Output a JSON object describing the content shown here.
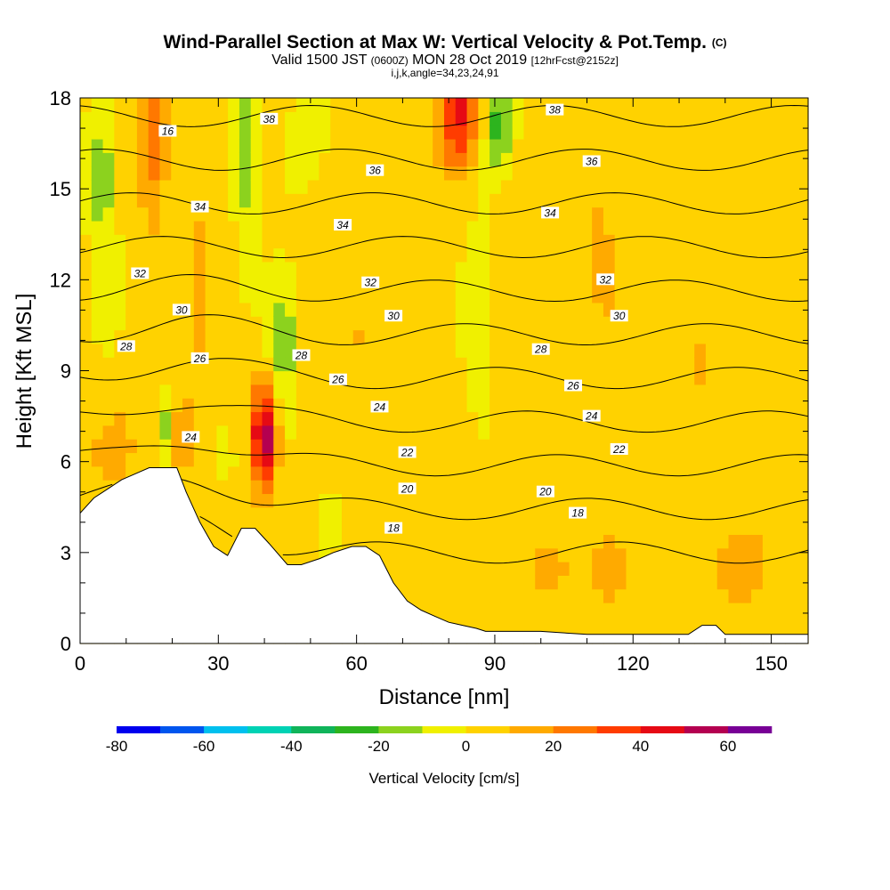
{
  "title": {
    "main": "Wind-Parallel Section at Max W: Vertical Velocity & Pot.Temp.",
    "unit": "(C)",
    "valid_prefix": "Valid 1500 JST",
    "valid_utc": "(0600Z)",
    "valid_date": "MON 28 Oct 2019",
    "forecast": "[12hrFcst@2152z]",
    "indices": "i,j,k,angle=34,23,24,91"
  },
  "colors": {
    "contour_line": "#000000",
    "terrain_fill": "#ffffff",
    "colorbar": [
      "#0000ee",
      "#0055ee",
      "#00c0ee",
      "#00d2b4",
      "#10b45a",
      "#2db41e",
      "#8cd21e",
      "#f0f000",
      "#ffd200",
      "#ffaa00",
      "#ff7800",
      "#ff3c00",
      "#e60a14",
      "#b40050",
      "#780096"
    ]
  },
  "chart_data": {
    "type": "heatmap",
    "xlabel": "Distance [nm]",
    "ylabel": "Height [Kft MSL]",
    "xlim": [
      0,
      158
    ],
    "ylim": [
      0,
      18
    ],
    "x_ticks": [
      0,
      30,
      60,
      90,
      120,
      150
    ],
    "y_ticks": [
      0,
      3,
      6,
      9,
      12,
      15,
      18
    ],
    "colorbar": {
      "label": "Vertical Velocity [cm/s]",
      "ticks": [
        -80,
        -60,
        -40,
        -20,
        0,
        20,
        40,
        60
      ],
      "bounds": [
        -80,
        70
      ],
      "step": 10
    },
    "terrain": {
      "x": [
        0,
        3,
        6,
        9,
        12,
        15,
        18,
        21,
        23,
        26,
        29,
        32,
        35,
        38,
        41,
        45,
        48,
        52,
        55,
        59,
        62,
        65,
        68,
        71,
        74,
        77,
        80,
        83,
        86,
        88,
        90,
        95,
        100,
        110,
        120,
        130,
        132,
        135,
        138,
        140,
        145,
        150,
        155,
        158
      ],
      "height": [
        4.3,
        4.8,
        5.1,
        5.4,
        5.6,
        5.8,
        5.8,
        5.8,
        5.0,
        4.0,
        3.2,
        2.9,
        3.8,
        3.8,
        3.3,
        2.6,
        2.6,
        2.8,
        3.0,
        3.2,
        3.2,
        2.9,
        2.0,
        1.4,
        1.1,
        0.9,
        0.7,
        0.6,
        0.5,
        0.4,
        0.4,
        0.4,
        0.4,
        0.3,
        0.3,
        0.3,
        0.3,
        0.6,
        0.6,
        0.3,
        0.3,
        0.3,
        0.3,
        0.3
      ]
    },
    "velocity_features": [
      {
        "x": 40,
        "y": 6.8,
        "sx": 2.6,
        "sy": 1.8,
        "w": 55
      },
      {
        "x": 82,
        "y": 17.4,
        "sx": 4.5,
        "sy": 1.6,
        "w": 40
      },
      {
        "x": 16,
        "y": 16.5,
        "sx": 3.0,
        "sy": 2.8,
        "w": 22
      },
      {
        "x": 26,
        "y": 11.5,
        "sx": 3.0,
        "sy": 3.0,
        "w": 12
      },
      {
        "x": 6,
        "y": 6.4,
        "sx": 5.0,
        "sy": 1.4,
        "w": 14
      },
      {
        "x": 22,
        "y": 6.8,
        "sx": 2.5,
        "sy": 1.5,
        "w": 12
      },
      {
        "x": 110,
        "y": 2.5,
        "sx": 20,
        "sy": 1.6,
        "w": 8
      },
      {
        "x": 145,
        "y": 2.5,
        "sx": 10,
        "sy": 1.6,
        "w": 10
      },
      {
        "x": 113,
        "y": 13.0,
        "sx": 4.0,
        "sy": 3.0,
        "w": 9
      },
      {
        "x": 135,
        "y": 9.5,
        "sx": 3.0,
        "sy": 1.6,
        "w": 9
      },
      {
        "x": 60,
        "y": 9.2,
        "sx": 12,
        "sy": 3.0,
        "w": 6
      },
      {
        "x": 5,
        "y": 15.0,
        "sx": 3.0,
        "sy": 5.0,
        "w": -15
      },
      {
        "x": 36,
        "y": 16.5,
        "sx": 2.2,
        "sy": 3.5,
        "w": -20
      },
      {
        "x": 44,
        "y": 10.0,
        "sx": 3.0,
        "sy": 2.2,
        "w": -24
      },
      {
        "x": 50,
        "y": 17.0,
        "sx": 3.5,
        "sy": 2.0,
        "w": -12
      },
      {
        "x": 54,
        "y": 4.0,
        "sx": 2.0,
        "sy": 1.0,
        "w": -12
      },
      {
        "x": 86,
        "y": 11.0,
        "sx": 3.0,
        "sy": 2.4,
        "w": -14
      },
      {
        "x": 91,
        "y": 17.2,
        "sx": 3.0,
        "sy": 1.6,
        "w": -30
      },
      {
        "x": 19,
        "y": 7.2,
        "sx": 1.2,
        "sy": 1.2,
        "w": -18
      },
      {
        "x": 32,
        "y": 6.0,
        "sx": 1.0,
        "sy": 1.0,
        "w": -10
      }
    ],
    "theta_contours": [
      16,
      18,
      20,
      22,
      24,
      26,
      28,
      30,
      32,
      34,
      36,
      38
    ],
    "theta_labels": [
      {
        "v": "16",
        "x": 19,
        "y": 16.9
      },
      {
        "v": "36",
        "x": 64,
        "y": 15.6
      },
      {
        "v": "36",
        "x": 111,
        "y": 15.9
      },
      {
        "v": "38",
        "x": 41,
        "y": 17.3
      },
      {
        "v": "38",
        "x": 103,
        "y": 17.6
      },
      {
        "v": "34",
        "x": 26,
        "y": 14.4
      },
      {
        "v": "34",
        "x": 57,
        "y": 13.8
      },
      {
        "v": "34",
        "x": 102,
        "y": 14.2
      },
      {
        "v": "32",
        "x": 13,
        "y": 12.2
      },
      {
        "v": "32",
        "x": 63,
        "y": 11.9
      },
      {
        "v": "32",
        "x": 114,
        "y": 12.0
      },
      {
        "v": "30",
        "x": 22,
        "y": 11.0
      },
      {
        "v": "30",
        "x": 68,
        "y": 10.8
      },
      {
        "v": "30",
        "x": 117,
        "y": 10.8
      },
      {
        "v": "28",
        "x": 10,
        "y": 9.8
      },
      {
        "v": "28",
        "x": 48,
        "y": 9.5
      },
      {
        "v": "28",
        "x": 100,
        "y": 9.7
      },
      {
        "v": "26",
        "x": 26,
        "y": 9.4
      },
      {
        "v": "26",
        "x": 56,
        "y": 8.7
      },
      {
        "v": "26",
        "x": 107,
        "y": 8.5
      },
      {
        "v": "24",
        "x": 24,
        "y": 6.8
      },
      {
        "v": "24",
        "x": 65,
        "y": 7.8
      },
      {
        "v": "24",
        "x": 111,
        "y": 7.5
      },
      {
        "v": "22",
        "x": 71,
        "y": 6.3
      },
      {
        "v": "22",
        "x": 117,
        "y": 6.4
      },
      {
        "v": "20",
        "x": 71,
        "y": 5.1
      },
      {
        "v": "20",
        "x": 101,
        "y": 5.0
      },
      {
        "v": "18",
        "x": 68,
        "y": 3.8
      },
      {
        "v": "18",
        "x": 108,
        "y": 4.3
      }
    ]
  }
}
